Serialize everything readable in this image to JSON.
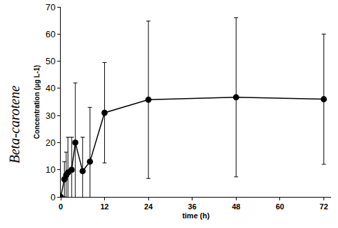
{
  "chart_data": {
    "type": "line",
    "x_label": "time (h)",
    "y_label": "Concentration (µg L-1)",
    "annotations": [
      {
        "text": "Beta-carotene"
      }
    ],
    "x": [
      0,
      1,
      1.5,
      2,
      3,
      4,
      6,
      8,
      12,
      24,
      48,
      72
    ],
    "series": [
      {
        "name": "Beta-carotene",
        "color": "#000000",
        "values": [
          0,
          6.5,
          8,
          9,
          10,
          20,
          9.5,
          13,
          31,
          35.8,
          36.7,
          36
        ],
        "errors": [
          0,
          6.5,
          8.5,
          13,
          12,
          22,
          12.5,
          20,
          18.5,
          29,
          29.3,
          24
        ]
      }
    ],
    "marker": "circle",
    "xlim": [
      0,
      74
    ],
    "xticks": [
      0,
      12,
      24,
      36,
      48,
      60,
      72
    ],
    "ylim": [
      0,
      70
    ],
    "yticks": [
      0,
      10,
      20,
      30,
      40,
      50,
      60,
      70
    ],
    "grid": false
  }
}
